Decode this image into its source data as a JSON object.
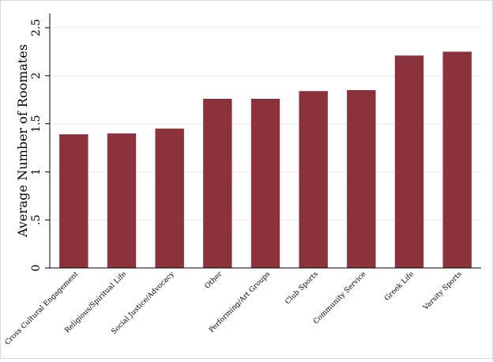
{
  "chart_data": {
    "type": "bar",
    "title": "",
    "xlabel": "",
    "ylabel": "Average Number of Roomates",
    "categories": [
      "Cross Cultural Engagement",
      "Religious/Spiritual Life",
      "Social Justice/Advocacy",
      "Other",
      "Performing/Art Groups",
      "Club Sports",
      "Community Service",
      "Greek Life",
      "Varsity Sports"
    ],
    "values": [
      1.39,
      1.4,
      1.45,
      1.76,
      1.76,
      1.84,
      1.85,
      2.21,
      2.25
    ],
    "ylim": [
      0,
      2.5
    ],
    "yticks": [
      0,
      0.5,
      1,
      1.5,
      2,
      2.5
    ],
    "ytick_labels": [
      "0",
      ".5",
      "1",
      "1.5",
      "2",
      "2.5"
    ],
    "grid": true,
    "colors": {
      "bar": "#8b323d",
      "grid": "#eaeaea",
      "axis": "#000000"
    }
  }
}
